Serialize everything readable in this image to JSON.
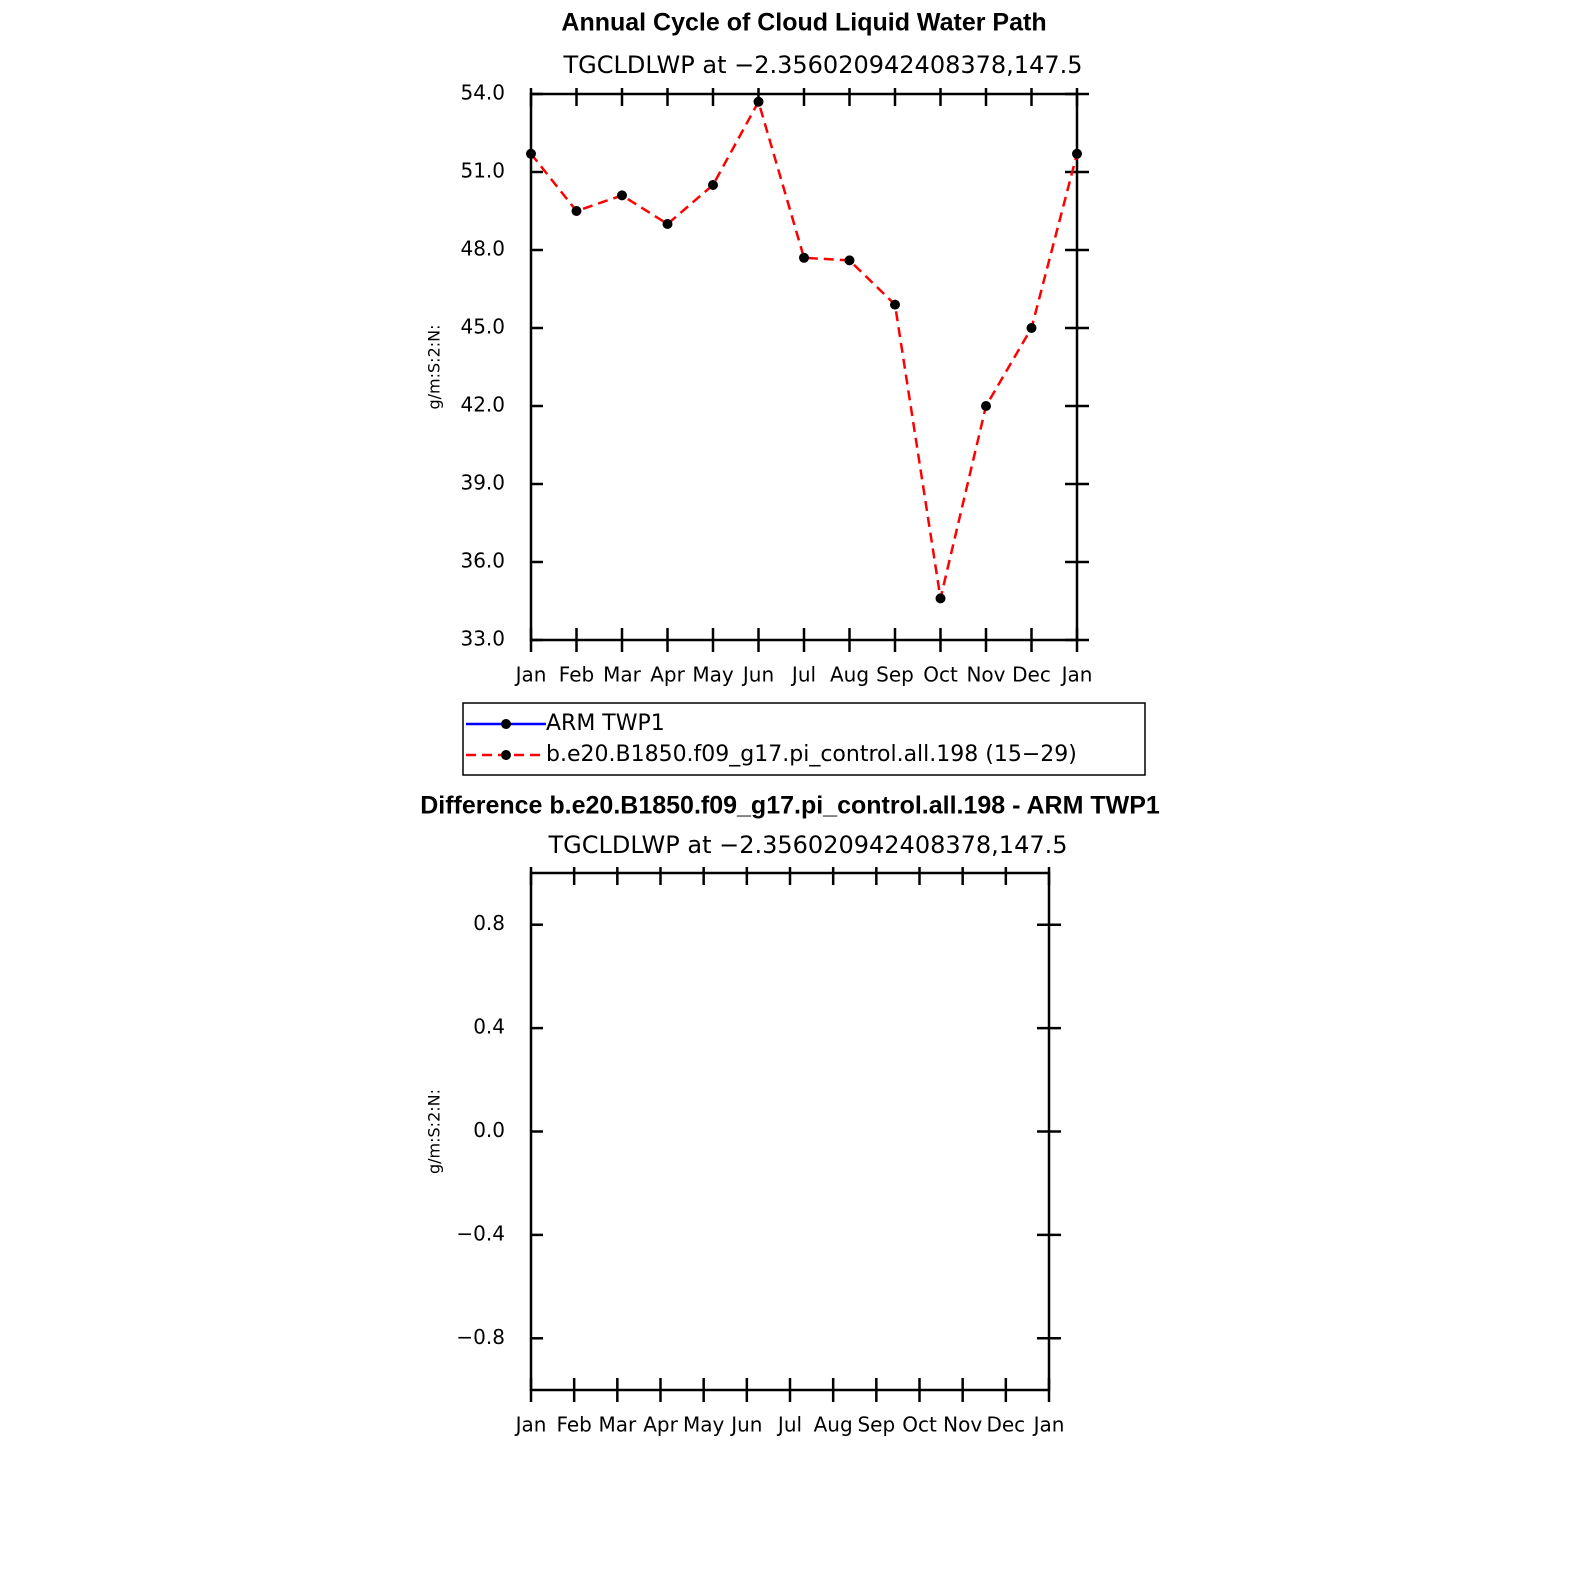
{
  "chart_data": [
    {
      "type": "line",
      "title": "Annual Cycle of Cloud Liquid Water Path",
      "subtitle": "TGCLDLWP at −2.356020942408378,147.5",
      "y_label": "g/m:S:2:N:",
      "categories": [
        "Jan",
        "Feb",
        "Mar",
        "Apr",
        "May",
        "Jun",
        "Jul",
        "Aug",
        "Sep",
        "Oct",
        "Nov",
        "Dec",
        "Jan"
      ],
      "series": [
        {
          "name": "ARM TWP1",
          "color": "#0000ff",
          "line_style": "solid",
          "marker_color": "#000000",
          "values": [
            null,
            null,
            null,
            null,
            null,
            null,
            null,
            null,
            null,
            null,
            null,
            null,
            null
          ]
        },
        {
          "name": "b.e20.B1850.f09_g17.pi_control.all.198 (15−29)",
          "color": "#ff0000",
          "line_style": "dashed",
          "marker_color": "#000000",
          "values": [
            51.7,
            49.5,
            50.1,
            49.0,
            50.5,
            53.7,
            47.7,
            47.6,
            45.9,
            34.6,
            42.0,
            45.0,
            51.7
          ]
        }
      ],
      "ylim": [
        33,
        54
      ],
      "yticks": [
        {
          "value": 33,
          "label": "33.0"
        },
        {
          "value": 36,
          "label": "36.0"
        },
        {
          "value": 39,
          "label": "39.0"
        },
        {
          "value": 42,
          "label": "42.0"
        },
        {
          "value": 45,
          "label": "45.0"
        },
        {
          "value": 48,
          "label": "48.0"
        },
        {
          "value": 51,
          "label": "51.0"
        },
        {
          "value": 54,
          "label": "54.0"
        }
      ],
      "legend": "bottom"
    },
    {
      "type": "line",
      "title": "Difference b.e20.B1850.f09_g17.pi_control.all.198 - ARM TWP1",
      "subtitle": "TGCLDLWP at −2.356020942408378,147.5",
      "y_label": "g/m:S:2:N:",
      "categories": [
        "Jan",
        "Feb",
        "Mar",
        "Apr",
        "May",
        "Jun",
        "Jul",
        "Aug",
        "Sep",
        "Oct",
        "Nov",
        "Dec",
        "Jan"
      ],
      "series": [],
      "ylim": [
        -1,
        1
      ],
      "yticks": [
        {
          "value": -0.8,
          "label": "−0.8"
        },
        {
          "value": -0.4,
          "label": "−0.4"
        },
        {
          "value": 0,
          "label": "0.0"
        },
        {
          "value": 0.4,
          "label": "0.4"
        },
        {
          "value": 0.8,
          "label": "0.8"
        }
      ]
    }
  ]
}
